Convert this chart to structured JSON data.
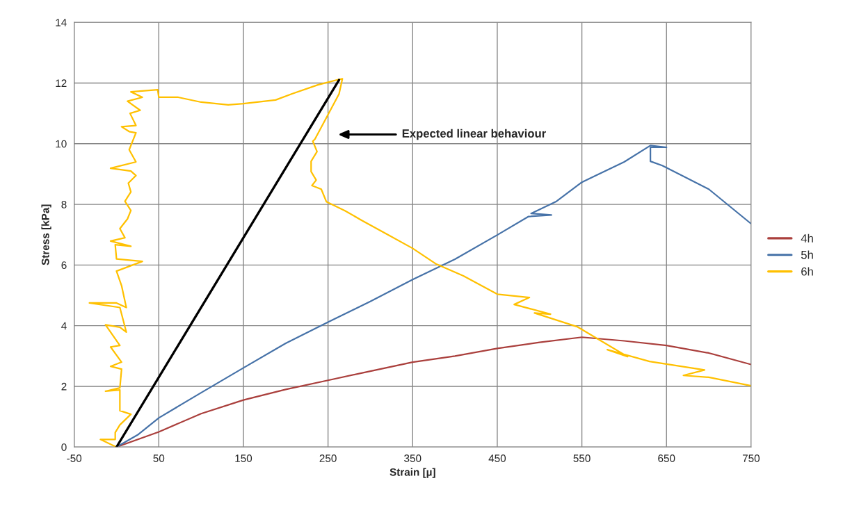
{
  "chart_data": {
    "type": "line",
    "xlabel": "Strain [µ]",
    "ylabel": "Stress [kPa]",
    "xlim": [
      -50,
      750
    ],
    "xticks": [
      -50,
      50,
      150,
      250,
      350,
      450,
      550,
      650,
      750
    ],
    "ylim": [
      0,
      14
    ],
    "yticks": [
      0,
      2,
      4,
      6,
      8,
      10,
      12,
      14
    ],
    "grid": true,
    "legend": "right",
    "annotations": [
      "Expected linear behaviour"
    ],
    "series": [
      {
        "name": "4h",
        "color": "#aa3f3c",
        "x": [
          0,
          50,
          100,
          150,
          200,
          250,
          300,
          350,
          400,
          450,
          500,
          550,
          600,
          650,
          700,
          750
        ],
        "values": [
          0,
          0.5,
          1.1,
          1.55,
          1.9,
          2.2,
          2.5,
          2.8,
          3.0,
          3.25,
          3.45,
          3.62,
          3.5,
          3.35,
          3.1,
          2.72
        ]
      },
      {
        "name": "5h",
        "color": "#4672a8",
        "x": [
          0,
          25,
          50,
          100,
          150,
          200,
          250,
          300,
          350,
          400,
          450,
          487,
          514,
          490,
          520,
          550,
          600,
          631,
          650,
          631,
          631,
          645,
          700,
          750
        ],
        "values": [
          0,
          0.4,
          0.96,
          1.79,
          2.61,
          3.42,
          4.12,
          4.8,
          5.52,
          6.19,
          6.99,
          7.6,
          7.65,
          7.7,
          8.1,
          8.73,
          9.4,
          9.94,
          9.88,
          9.88,
          9.42,
          9.28,
          8.5,
          7.36
        ]
      },
      {
        "name": "6h",
        "color": "#ffc000",
        "x": [
          -1.5,
          -19,
          -1.5,
          -1.5,
          4,
          17,
          4,
          4,
          -13,
          4,
          6,
          -7,
          6,
          -7,
          4,
          -13,
          4,
          11.6,
          4,
          -32,
          0,
          11.6,
          6,
          0,
          30.6,
          0,
          -1.5,
          17,
          -7,
          10,
          4,
          13,
          17,
          10,
          17,
          14,
          23,
          17,
          -7,
          23,
          15,
          23,
          15,
          6,
          23,
          16,
          28,
          13,
          30.6,
          17,
          48.7,
          50,
          73,
          100,
          132,
          150,
          188,
          208,
          238,
          263,
          267,
          263,
          234.5,
          232,
          237,
          230,
          230,
          236,
          231,
          242,
          248,
          270,
          290,
          320,
          350,
          378,
          410,
          450,
          488,
          470,
          513,
          494,
          545,
          604,
          580,
          630,
          695,
          670,
          700,
          750
        ],
        "values": [
          0.02,
          0.25,
          0.25,
          0.48,
          0.73,
          1.08,
          1.2,
          1.88,
          1.84,
          1.95,
          2.57,
          2.66,
          2.8,
          3.3,
          3.35,
          4.03,
          3.95,
          3.79,
          4.6,
          4.75,
          4.75,
          4.6,
          5.32,
          5.8,
          6.12,
          6.2,
          6.67,
          6.62,
          6.79,
          6.9,
          7.2,
          7.52,
          7.8,
          8.1,
          8.41,
          8.7,
          8.95,
          9.1,
          9.19,
          9.4,
          9.8,
          10.36,
          10.4,
          10.56,
          10.6,
          11.0,
          11.1,
          11.4,
          11.53,
          11.71,
          11.78,
          11.53,
          11.53,
          11.37,
          11.28,
          11.32,
          11.44,
          11.65,
          11.94,
          12.12,
          12.14,
          11.64,
          10.15,
          10.08,
          9.74,
          9.42,
          9.08,
          8.8,
          8.62,
          8.5,
          8.09,
          7.79,
          7.47,
          7.01,
          6.55,
          6.03,
          5.64,
          5.04,
          4.93,
          4.7,
          4.38,
          4.42,
          3.96,
          2.98,
          3.21,
          2.82,
          2.54,
          2.36,
          2.3,
          2.02
        ]
      },
      {
        "type": "line",
        "color": "#000000",
        "x": [
          0,
          263
        ],
        "values": [
          0,
          12.1
        ]
      }
    ]
  }
}
